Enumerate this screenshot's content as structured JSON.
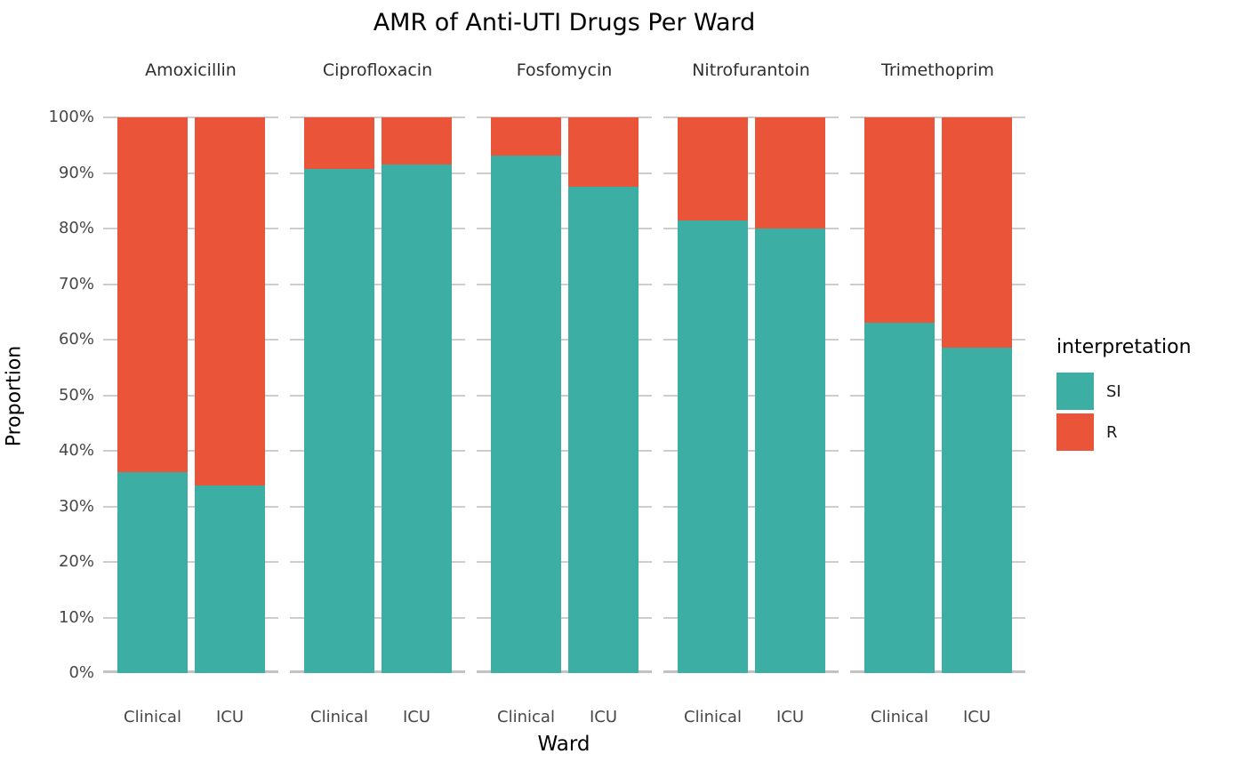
{
  "chart_data": {
    "type": "bar",
    "stacked": true,
    "orientation": "vertical",
    "title": "AMR of Anti-UTI Drugs Per Ward",
    "xlabel": "Ward",
    "ylabel": "Proportion",
    "facets": [
      "Amoxicillin",
      "Ciprofloxacin",
      "Fosfomycin",
      "Nitrofurantoin",
      "Trimethoprim"
    ],
    "categories": [
      "Clinical",
      "ICU"
    ],
    "ylim": [
      0,
      100
    ],
    "y_ticks": [
      "0%",
      "10%",
      "20%",
      "30%",
      "40%",
      "50%",
      "60%",
      "70%",
      "80%",
      "90%",
      "100%"
    ],
    "grid": true,
    "legend": {
      "title": "interpretation",
      "position": "right",
      "entries": [
        {
          "label": "SI",
          "color": "#3caea4"
        },
        {
          "label": "R",
          "color": "#ea5439"
        }
      ]
    },
    "series": [
      {
        "name": "SI",
        "color": "#3caea4",
        "values_percent": {
          "Amoxicillin": [
            36.2,
            33.8
          ],
          "Ciprofloxacin": [
            90.8,
            91.6
          ],
          "Fosfomycin": [
            93.2,
            87.5
          ],
          "Nitrofurantoin": [
            81.4,
            80.0
          ],
          "Trimethoprim": [
            63.1,
            58.5
          ]
        }
      },
      {
        "name": "R",
        "color": "#ea5439",
        "values_percent": {
          "Amoxicillin": [
            63.8,
            66.2
          ],
          "Ciprofloxacin": [
            9.2,
            8.4
          ],
          "Fosfomycin": [
            6.8,
            12.5
          ],
          "Nitrofurantoin": [
            18.6,
            20.0
          ],
          "Trimethoprim": [
            36.9,
            41.5
          ]
        }
      }
    ],
    "colors": {
      "si": "#3caea4",
      "r": "#ea5439",
      "gridline": "#cdcdcd",
      "axis_line": "#c2c2c2",
      "tick_label": "#474747",
      "strip_label": "#2e2e2e",
      "title": "#000000"
    }
  }
}
